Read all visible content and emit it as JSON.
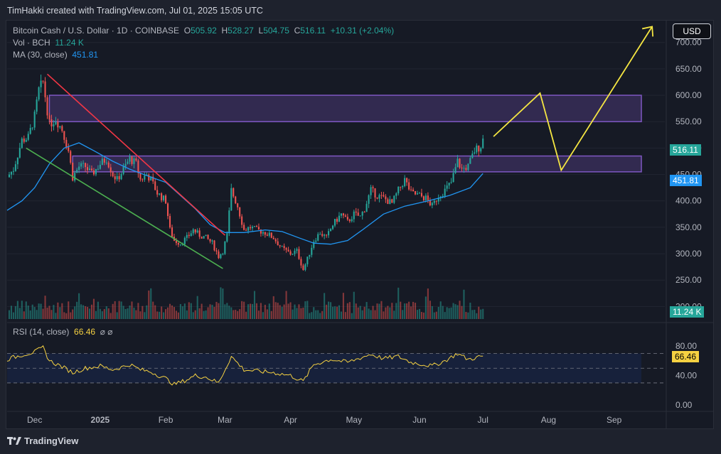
{
  "header": {
    "text": "TimHakki created with TradingView.com, Jul 01, 2025 15:05 UTC"
  },
  "legend": {
    "symbol": "Bitcoin Cash / U.S. Dollar · 1D · COINBASE",
    "o_label": "O",
    "o": "505.92",
    "h_label": "H",
    "h": "528.27",
    "l_label": "L",
    "l": "504.75",
    "c_label": "C",
    "c": "516.11",
    "change": "+10.31 (+2.04%)",
    "vol_label": "Vol · BCH",
    "vol": "11.24 K",
    "ma_label": "MA (30, close)",
    "ma": "451.81",
    "rsi_label": "RSI (14, close)",
    "rsi": "66.46",
    "rsi_extra": "⌀ ⌀"
  },
  "currency_button": "USD",
  "footer": {
    "brand": "TradingView"
  },
  "colors": {
    "up": "#26a69a",
    "down": "#ef5350",
    "ma": "#2196f3",
    "rsi": "#f5d142",
    "zone": "#7e57c2",
    "red_trend": "#f23645",
    "green_trend": "#4caf50",
    "projection": "#f5e642"
  },
  "chart_data": {
    "type": "candlestick",
    "symbol": "BCHUSD",
    "timeframe": "1D",
    "exchange": "COINBASE",
    "price_axis": {
      "ticks": [
        "700.00",
        "650.00",
        "600.00",
        "550.00",
        "500.00",
        "450.00",
        "400.00",
        "350.00",
        "300.00",
        "250.00",
        "200.00"
      ],
      "range": [
        175,
        740
      ]
    },
    "time_axis": {
      "ticks": [
        "Dec",
        "2025",
        "Feb",
        "Mar",
        "Apr",
        "May",
        "Jun",
        "Jul",
        "Aug",
        "Sep"
      ],
      "range": [
        "2024-11-18",
        "2025-09-25"
      ]
    },
    "current_price_label": "516.11",
    "ma_label_value": "451.81",
    "volume_label_value": "11.24 K",
    "rsi_axis": {
      "ticks": [
        "80.00",
        "40.00",
        "0.00"
      ],
      "overbought": 70,
      "oversold": 30,
      "current_label": "66.46"
    },
    "price_series": [
      [
        "2024-11-18",
        445
      ],
      [
        "2024-11-21",
        460
      ],
      [
        "2024-11-25",
        515
      ],
      [
        "2024-11-28",
        520
      ],
      [
        "2024-12-01",
        560
      ],
      [
        "2024-12-03",
        610
      ],
      [
        "2024-12-05",
        625
      ],
      [
        "2024-12-08",
        545
      ],
      [
        "2024-12-11",
        555
      ],
      [
        "2024-12-14",
        535
      ],
      [
        "2024-12-17",
        495
      ],
      [
        "2024-12-19",
        445
      ],
      [
        "2024-12-22",
        465
      ],
      [
        "2024-12-25",
        465
      ],
      [
        "2024-12-28",
        450
      ],
      [
        "2025-01-01",
        470
      ],
      [
        "2025-01-04",
        480
      ],
      [
        "2025-01-07",
        450
      ],
      [
        "2025-01-09",
        440
      ],
      [
        "2025-01-12",
        460
      ],
      [
        "2025-01-15",
        480
      ],
      [
        "2025-01-18",
        470
      ],
      [
        "2025-01-20",
        440
      ],
      [
        "2025-01-23",
        450
      ],
      [
        "2025-01-25",
        440
      ],
      [
        "2025-01-28",
        415
      ],
      [
        "2025-02-01",
        400
      ],
      [
        "2025-02-03",
        345
      ],
      [
        "2025-02-05",
        325
      ],
      [
        "2025-02-08",
        320
      ],
      [
        "2025-02-11",
        330
      ],
      [
        "2025-02-14",
        345
      ],
      [
        "2025-02-17",
        335
      ],
      [
        "2025-02-20",
        330
      ],
      [
        "2025-02-23",
        320
      ],
      [
        "2025-02-26",
        295
      ],
      [
        "2025-02-28",
        305
      ],
      [
        "2025-03-02",
        335
      ],
      [
        "2025-03-04",
        420
      ],
      [
        "2025-03-07",
        390
      ],
      [
        "2025-03-10",
        345
      ],
      [
        "2025-03-13",
        350
      ],
      [
        "2025-03-16",
        345
      ],
      [
        "2025-03-20",
        340
      ],
      [
        "2025-03-24",
        330
      ],
      [
        "2025-03-28",
        310
      ],
      [
        "2025-04-01",
        300
      ],
      [
        "2025-04-04",
        305
      ],
      [
        "2025-04-07",
        270
      ],
      [
        "2025-04-09",
        290
      ],
      [
        "2025-04-12",
        325
      ],
      [
        "2025-04-15",
        340
      ],
      [
        "2025-04-18",
        330
      ],
      [
        "2025-04-21",
        355
      ],
      [
        "2025-04-25",
        375
      ],
      [
        "2025-04-28",
        360
      ],
      [
        "2025-05-01",
        375
      ],
      [
        "2025-05-04",
        370
      ],
      [
        "2025-05-06",
        385
      ],
      [
        "2025-05-09",
        420
      ],
      [
        "2025-05-12",
        410
      ],
      [
        "2025-05-15",
        405
      ],
      [
        "2025-05-19",
        395
      ],
      [
        "2025-05-22",
        420
      ],
      [
        "2025-05-25",
        440
      ],
      [
        "2025-05-28",
        415
      ],
      [
        "2025-06-01",
        410
      ],
      [
        "2025-06-04",
        405
      ],
      [
        "2025-06-07",
        390
      ],
      [
        "2025-06-10",
        410
      ],
      [
        "2025-06-13",
        420
      ],
      [
        "2025-06-16",
        435
      ],
      [
        "2025-06-19",
        475
      ],
      [
        "2025-06-21",
        460
      ],
      [
        "2025-06-24",
        465
      ],
      [
        "2025-06-27",
        495
      ],
      [
        "2025-06-30",
        505
      ],
      [
        "2025-07-01",
        516.11
      ]
    ],
    "ma30_series": [
      [
        "2024-11-18",
        382
      ],
      [
        "2024-11-25",
        400
      ],
      [
        "2024-12-01",
        425
      ],
      [
        "2024-12-08",
        470
      ],
      [
        "2024-12-15",
        500
      ],
      [
        "2024-12-22",
        510
      ],
      [
        "2024-12-29",
        495
      ],
      [
        "2025-01-07",
        475
      ],
      [
        "2025-01-15",
        460
      ],
      [
        "2025-01-25",
        445
      ],
      [
        "2025-02-01",
        435
      ],
      [
        "2025-02-08",
        410
      ],
      [
        "2025-02-15",
        385
      ],
      [
        "2025-02-22",
        355
      ],
      [
        "2025-03-01",
        340
      ],
      [
        "2025-03-10",
        340
      ],
      [
        "2025-03-20",
        345
      ],
      [
        "2025-03-28",
        342
      ],
      [
        "2025-04-05",
        330
      ],
      [
        "2025-04-12",
        320
      ],
      [
        "2025-04-20",
        318
      ],
      [
        "2025-04-28",
        325
      ],
      [
        "2025-05-05",
        345
      ],
      [
        "2025-05-15",
        375
      ],
      [
        "2025-05-25",
        390
      ],
      [
        "2025-06-05",
        400
      ],
      [
        "2025-06-15",
        410
      ],
      [
        "2025-06-25",
        425
      ],
      [
        "2025-07-01",
        451.81
      ]
    ],
    "rsi_series": [
      [
        "2024-11-18",
        62
      ],
      [
        "2024-11-25",
        68
      ],
      [
        "2024-12-01",
        72
      ],
      [
        "2024-12-05",
        78
      ],
      [
        "2024-12-08",
        60
      ],
      [
        "2024-12-14",
        52
      ],
      [
        "2024-12-19",
        44
      ],
      [
        "2024-12-25",
        50
      ],
      [
        "2025-01-01",
        53
      ],
      [
        "2025-01-07",
        48
      ],
      [
        "2025-01-12",
        52
      ],
      [
        "2025-01-15",
        55
      ],
      [
        "2025-01-20",
        48
      ],
      [
        "2025-01-25",
        45
      ],
      [
        "2025-02-01",
        36
      ],
      [
        "2025-02-05",
        28
      ],
      [
        "2025-02-10",
        33
      ],
      [
        "2025-02-15",
        40
      ],
      [
        "2025-02-20",
        38
      ],
      [
        "2025-02-26",
        30
      ],
      [
        "2025-03-04",
        66
      ],
      [
        "2025-03-10",
        48
      ],
      [
        "2025-03-16",
        46
      ],
      [
        "2025-03-24",
        44
      ],
      [
        "2025-04-01",
        40
      ],
      [
        "2025-04-07",
        32
      ],
      [
        "2025-04-12",
        55
      ],
      [
        "2025-04-20",
        62
      ],
      [
        "2025-04-28",
        58
      ],
      [
        "2025-05-09",
        69
      ],
      [
        "2025-05-15",
        63
      ],
      [
        "2025-05-22",
        66
      ],
      [
        "2025-05-28",
        58
      ],
      [
        "2025-06-07",
        53
      ],
      [
        "2025-06-13",
        60
      ],
      [
        "2025-06-19",
        70
      ],
      [
        "2025-06-24",
        62
      ],
      [
        "2025-07-01",
        66.46
      ]
    ],
    "horizontal_zones": [
      {
        "from": "2024-12-08",
        "to": "2025-09-25",
        "low": 550,
        "high": 600
      },
      {
        "from": "2024-12-19",
        "to": "2025-09-25",
        "low": 455,
        "high": 485
      }
    ],
    "trend_lines": [
      {
        "kind": "resistance",
        "from": [
          "2024-12-07",
          640
        ],
        "to": [
          "2025-03-01",
          335
        ]
      },
      {
        "kind": "support",
        "from": [
          "2024-11-27",
          500
        ],
        "to": [
          "2025-02-28",
          272
        ]
      }
    ],
    "projection_path": [
      [
        "2025-07-06",
        522
      ],
      [
        "2025-07-28",
        604
      ],
      [
        "2025-08-07",
        458
      ],
      [
        "2025-09-19",
        730
      ]
    ]
  }
}
